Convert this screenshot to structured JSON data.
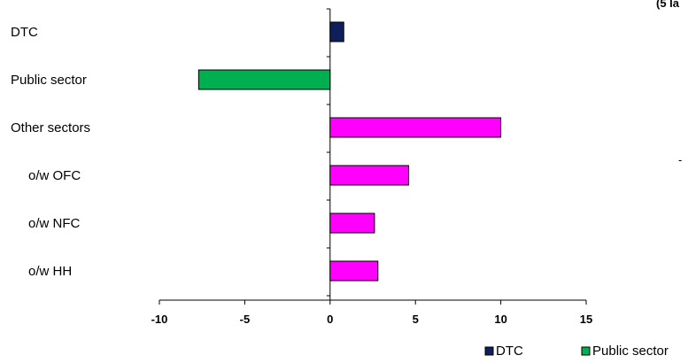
{
  "chart_data": {
    "type": "bar",
    "orientation": "horizontal",
    "categories": [
      "DTC",
      "Public sector",
      "Other sectors",
      "o/w OFC",
      "o/w NFC",
      "o/w HH"
    ],
    "values": [
      0.8,
      -7.7,
      10.0,
      4.6,
      2.6,
      2.8
    ],
    "bar_colors": [
      "#0f1f5c",
      "#00b050",
      "#ff00ff",
      "#ff00ff",
      "#ff00ff",
      "#ff00ff"
    ],
    "xlim": [
      -10,
      15
    ],
    "xticks": [
      -10,
      -5,
      0,
      5,
      10,
      15
    ],
    "legend": [
      {
        "label": "DTC",
        "color": "#0f1f5c"
      },
      {
        "label": "Public sector",
        "color": "#00b050"
      }
    ],
    "legend_position": "bottom-right",
    "grid": false
  },
  "corner_fragment": "(5 la",
  "side_mark": "-"
}
